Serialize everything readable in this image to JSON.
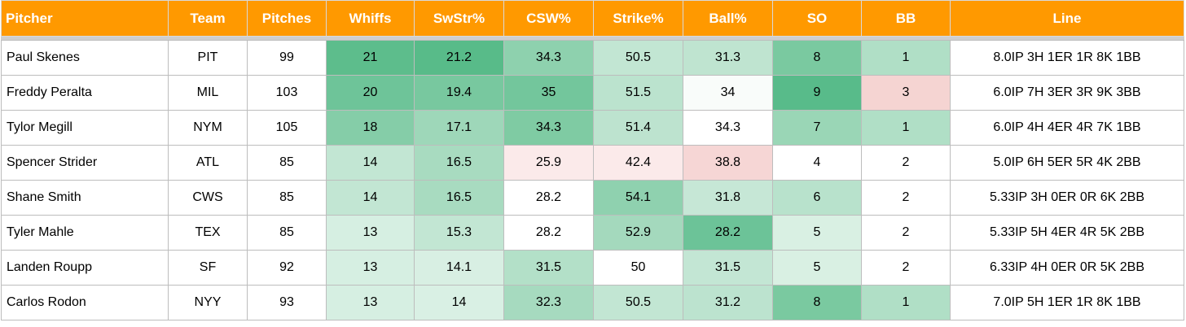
{
  "headers": [
    "Pitcher",
    "Team",
    "Pitches",
    "Whiffs",
    "SwStr%",
    "CSW%",
    "Strike%",
    "Ball%",
    "SO",
    "BB",
    "Line"
  ],
  "colors": {
    "header_bg": "#ff9900",
    "header_text": "#ffffff",
    "green_darkest": "#57bb8a",
    "red_light": "#f4cccc",
    "white": "#ffffff"
  },
  "rows": [
    {
      "cells": [
        "Paul Skenes",
        "PIT",
        "99",
        "21",
        "21.2",
        "34.3",
        "50.5",
        "31.3",
        "8",
        "1",
        "8.0IP 3H 1ER 1R 8K 1BB"
      ],
      "fills": [
        "#ffffff",
        "#ffffff",
        "#ffffff",
        "#5dbd8c",
        "#58bb89",
        "#8ed1ae",
        "#c2e6d3",
        "#bfe4d0",
        "#7ac9a0",
        "#b0dfc6",
        "#ffffff"
      ]
    },
    {
      "cells": [
        "Freddy Peralta",
        "MIL",
        "103",
        "20",
        "19.4",
        "35",
        "51.5",
        "34",
        "9",
        "3",
        "6.0IP 7H 3ER 3R 9K 3BB"
      ],
      "fills": [
        "#ffffff",
        "#ffffff",
        "#ffffff",
        "#6ec499",
        "#78c89f",
        "#73c69c",
        "#bbe3ce",
        "#f9fcfa",
        "#58bb8a",
        "#f5d4d2",
        "#ffffff"
      ]
    },
    {
      "cells": [
        "Tylor Megill",
        "NYM",
        "105",
        "18",
        "17.1",
        "34.3",
        "51.4",
        "34.3",
        "7",
        "1",
        "6.0IP 4H 4ER 4R 7K 1BB"
      ],
      "fills": [
        "#ffffff",
        "#ffffff",
        "#ffffff",
        "#85cda8",
        "#9ed7b9",
        "#7fcba3",
        "#bde3cf",
        "#ffffff",
        "#9ad6b6",
        "#b0dfc6",
        "#ffffff"
      ]
    },
    {
      "cells": [
        "Spencer Strider",
        "ATL",
        "85",
        "14",
        "16.5",
        "25.9",
        "42.4",
        "38.8",
        "4",
        "2",
        "5.0IP 6H 5ER 5R 4K 2BB"
      ],
      "fills": [
        "#ffffff",
        "#ffffff",
        "#ffffff",
        "#c2e6d3",
        "#a8dbc0",
        "#fbeaea",
        "#fbeaea",
        "#f6d6d5",
        "#ffffff",
        "#ffffff",
        "#ffffff"
      ]
    },
    {
      "cells": [
        "Shane Smith",
        "CWS",
        "85",
        "14",
        "16.5",
        "28.2",
        "54.1",
        "31.8",
        "6",
        "2",
        "5.33IP 3H 0ER 0R 6K 2BB"
      ],
      "fills": [
        "#ffffff",
        "#ffffff",
        "#ffffff",
        "#c2e6d3",
        "#a8dbc0",
        "#ffffff",
        "#8fd1af",
        "#c6e7d6",
        "#b8e2cc",
        "#ffffff",
        "#ffffff"
      ]
    },
    {
      "cells": [
        "Tyler Mahle",
        "TEX",
        "85",
        "13",
        "15.3",
        "28.2",
        "52.9",
        "28.2",
        "5",
        "2",
        "5.33IP 5H 4ER 4R 5K 2BB"
      ],
      "fills": [
        "#ffffff",
        "#ffffff",
        "#ffffff",
        "#d6efe2",
        "#c2e6d3",
        "#ffffff",
        "#a4d9bd",
        "#6cc398",
        "#d9f0e3",
        "#ffffff",
        "#ffffff"
      ]
    },
    {
      "cells": [
        "Landen Roupp",
        "SF",
        "92",
        "13",
        "14.1",
        "31.5",
        "50",
        "31.5",
        "5",
        "2",
        "6.33IP 4H 0ER 0R 5K 2BB"
      ],
      "fills": [
        "#ffffff",
        "#ffffff",
        "#ffffff",
        "#d6efe2",
        "#d8efe3",
        "#b3e0c8",
        "#ffffff",
        "#c3e6d4",
        "#d9f0e3",
        "#ffffff",
        "#ffffff"
      ]
    },
    {
      "cells": [
        "Carlos Rodon",
        "NYY",
        "93",
        "13",
        "14",
        "32.3",
        "50.5",
        "31.2",
        "8",
        "1",
        "7.0IP 5H 1ER 1R 8K 1BB"
      ],
      "fills": [
        "#ffffff",
        "#ffffff",
        "#ffffff",
        "#d6efe2",
        "#d9f0e4",
        "#a6dabf",
        "#c2e6d3",
        "#bce3cf",
        "#7ac9a0",
        "#b0dfc6",
        "#ffffff"
      ]
    }
  ]
}
